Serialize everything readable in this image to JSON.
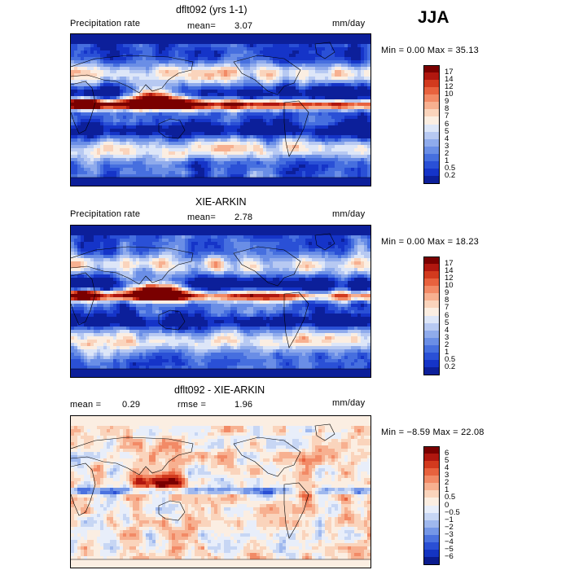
{
  "season": "JJA",
  "panels": [
    {
      "title": "dflt092 (yrs 1-1)",
      "left_label": "Precipitation rate",
      "mid_label": "mean=",
      "mid_value": "3.07",
      "mid2_label": "",
      "mid2_value": "",
      "unit": "mm/day",
      "minmax": "Min =    0.00 Max =  35.13",
      "colorbar_ticks": [
        "17",
        "14",
        "12",
        "10",
        "9",
        "8",
        "7",
        "6",
        "5",
        "4",
        "3",
        "2",
        "1",
        "0.5",
        "0.2"
      ],
      "colors": [
        "#7a0000",
        "#b0170f",
        "#d23a1e",
        "#e8623e",
        "#f28a66",
        "#f7b090",
        "#fad4bc",
        "#fbeee2",
        "#dde6f8",
        "#b7c9f2",
        "#8fabec",
        "#6a8ee6",
        "#466fdf",
        "#2a50d6",
        "#1534c8",
        "#0c1f9a"
      ]
    },
    {
      "title": "XIE-ARKIN",
      "left_label": "Precipitation rate",
      "mid_label": "mean=",
      "mid_value": "2.78",
      "mid2_label": "",
      "mid2_value": "",
      "unit": "mm/day",
      "minmax": "Min =    0.00 Max =  18.23",
      "colorbar_ticks": [
        "17",
        "14",
        "12",
        "10",
        "9",
        "8",
        "7",
        "6",
        "5",
        "4",
        "3",
        "2",
        "1",
        "0.5",
        "0.2"
      ],
      "colors": [
        "#7a0000",
        "#b0170f",
        "#d23a1e",
        "#e8623e",
        "#f28a66",
        "#f7b090",
        "#fad4bc",
        "#fbeee2",
        "#dde6f8",
        "#b7c9f2",
        "#8fabec",
        "#6a8ee6",
        "#466fdf",
        "#2a50d6",
        "#1534c8",
        "#0c1f9a"
      ]
    },
    {
      "title": "dflt092 - XIE-ARKIN",
      "left_label": "mean =",
      "left_value": "0.29",
      "mid_label": "rmse =",
      "mid_value": "1.96",
      "unit": "mm/day",
      "minmax": "Min = −8.59 Max =  22.08",
      "colorbar_ticks": [
        "6",
        "5",
        "4",
        "3",
        "2",
        "1",
        "0.5",
        "0",
        "−0.5",
        "−1",
        "−2",
        "−3",
        "−4",
        "−5",
        "−6"
      ],
      "colors": [
        "#7a0000",
        "#b0170f",
        "#d23a1e",
        "#e8623e",
        "#f28a66",
        "#f7b090",
        "#fad4bc",
        "#fbeee2",
        "#e8eefa",
        "#c7d6f4",
        "#9fb8ee",
        "#7597e7",
        "#4b72df",
        "#2a4fd4",
        "#1434c2",
        "#0a1b8e"
      ]
    }
  ]
}
